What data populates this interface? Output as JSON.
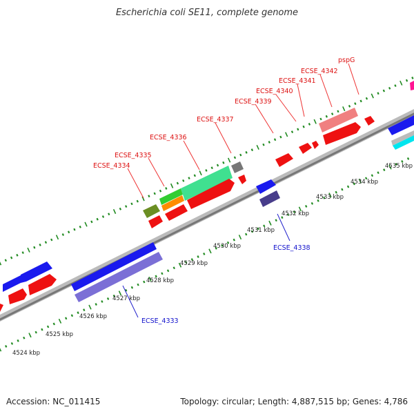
{
  "title": "Escherichia coli SE11, complete genome",
  "footer": {
    "accession": "Accession: NC_011415",
    "summary": "Topology: circular; Length: 4,887,515 bp; Genes: 4,786"
  },
  "scale_labels": [
    "4524 kbp",
    "4525 kbp",
    "4526 kbp",
    "4527 kbp",
    "4528 kbp",
    "4529 kbp",
    "4530 kbp",
    "4531 kbp",
    "4532 kbp",
    "4533 kbp",
    "4534 kbp",
    "4535 kbp"
  ],
  "gene_labels": {
    "forward": [
      "ECSE_4334",
      "ECSE_4335",
      "ECSE_4336",
      "ECSE_4337",
      "ECSE_4339",
      "ECSE_4340",
      "ECSE_4341",
      "ECSE_4342",
      "pspG"
    ],
    "reverse": [
      "ECSE_4333",
      "ECSE_4338"
    ]
  },
  "colors": {
    "backbone": "#888888",
    "cds": "#ee1111",
    "gene_fwd": "#1010dd",
    "gene_rev": "#6a5acd",
    "label_fwd": "#dd1111",
    "label_rev": "#1111cc",
    "tick": "#228b22"
  }
}
